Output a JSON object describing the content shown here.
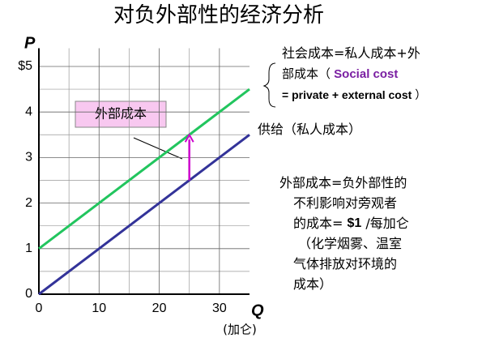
{
  "chart_data": {
    "type": "line",
    "title": "对负外部性的经济分析",
    "y_label": "P",
    "x_label": "Q",
    "x_unit": "(加仑)",
    "xlim": [
      0,
      35
    ],
    "ylim": [
      0,
      5.4
    ],
    "xticks": [
      0,
      10,
      20,
      30
    ],
    "yticks": [
      0,
      1,
      2,
      3,
      4,
      {
        "value": 5,
        "label": "$5"
      }
    ],
    "x_minor_ticks": [
      5,
      15,
      25
    ],
    "y_minor_ticks": [
      0.5,
      1.5,
      2.5,
      3.5,
      4.5
    ],
    "grid": true,
    "series": [
      {
        "color": "#22c55e",
        "x": [
          0,
          35
        ],
        "values": [
          1,
          4.5
        ],
        "label": [
          [
            "社会成本=私人成本+外"
          ],
          [
            "部成本（ ",
            "Social cost"
          ],
          [
            "= private + external cost",
            " ）"
          ]
        ]
      },
      {
        "color": "#333399",
        "x": [
          0,
          35
        ],
        "values": [
          0,
          3.5
        ],
        "label": [
          [
            "供给（私人成本）"
          ]
        ]
      }
    ],
    "arrow": {
      "x": 25,
      "values": [
        2.5,
        3.5
      ],
      "color": "#cc00cc"
    },
    "callout": "外部成本",
    "note": [
      [
        "外部成本=负外部性的"
      ],
      [
        "不利影响对旁观者"
      ],
      [
        "的成本= ",
        "$1",
        " /每加仑"
      ],
      [
        "（化学烟雾、温室"
      ],
      [
        "气体排放对环境的"
      ],
      [
        "成本）"
      ]
    ]
  }
}
